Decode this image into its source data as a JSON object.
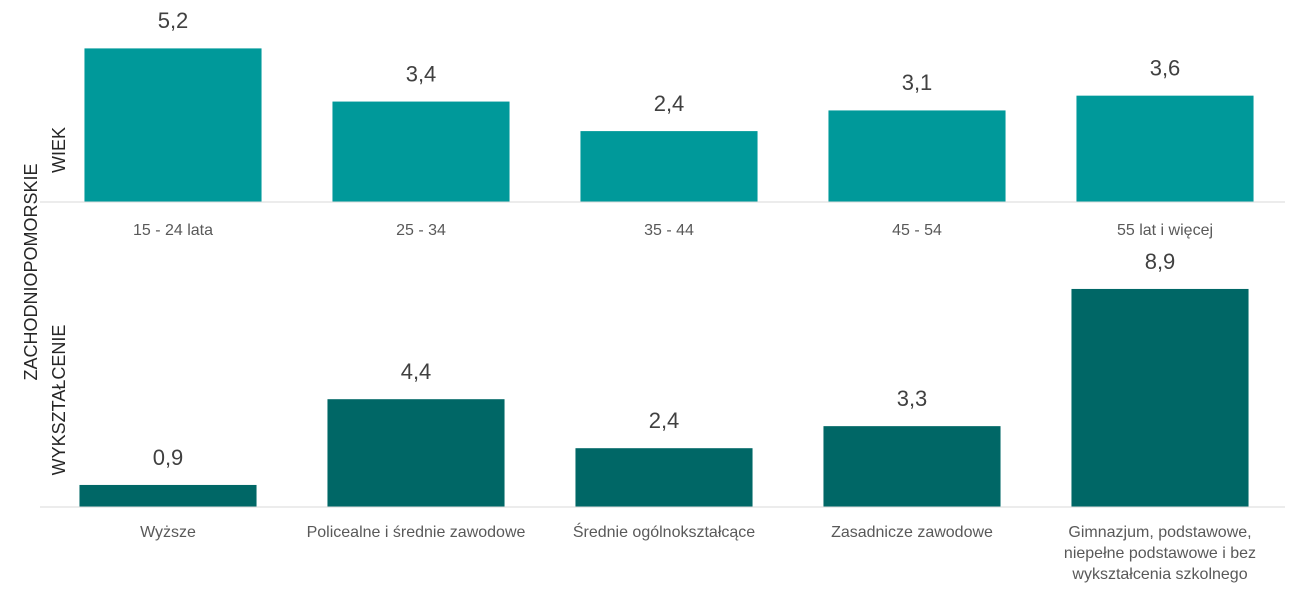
{
  "region": "ZACHODNIOPOMORSKIE",
  "chart_data": [
    {
      "type": "bar",
      "ylabel": "WIEK",
      "categories": [
        "15 - 24 lata",
        "25 - 34",
        "35 - 44",
        "45 - 54",
        "55 lat i więcej"
      ],
      "values": [
        5.2,
        3.4,
        2.4,
        3.1,
        3.6
      ],
      "value_labels": [
        "5,2",
        "3,4",
        "2,4",
        "3,1",
        "3,6"
      ],
      "color": "#00999a",
      "ylim": [
        0,
        6.5
      ]
    },
    {
      "type": "bar",
      "ylabel": "WYKSZTAŁCENIE",
      "categories": [
        "Wyższe",
        "Policealne i średnie zawodowe",
        "Średnie ogólnokształcące",
        "Zasadnicze zawodowe",
        "Gimnazjum, podstawowe, niepełne podstawowe i bez wykształcenia szkolnego"
      ],
      "values": [
        0.9,
        4.4,
        2.4,
        3.3,
        8.9
      ],
      "value_labels": [
        "0,9",
        "4,4",
        "2,4",
        "3,3",
        "8,9"
      ],
      "color": "#006766",
      "ylim": [
        0,
        10
      ]
    }
  ]
}
